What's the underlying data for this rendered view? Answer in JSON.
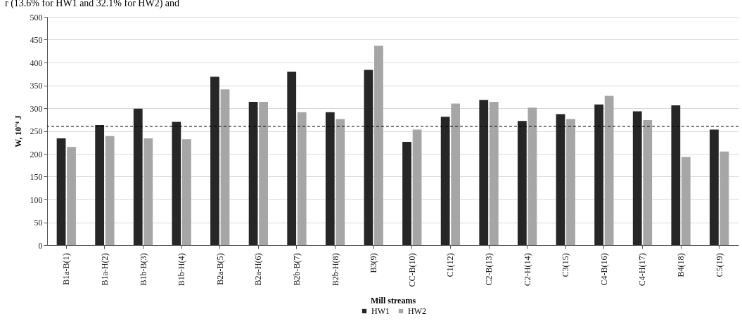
{
  "chart_data": {
    "type": "bar",
    "annotations": [
      "r (13.6% for HW1 and 32.1% for HW2) and"
    ],
    "xlabel": "Mill streams",
    "ylabel": "W, 10⁻⁴ J",
    "categories": [
      "B1a-B(1)",
      "B1a-H(2)",
      "B1b-B(3)",
      "B1b-H(4)",
      "B2a-B(5)",
      "B2a-H(6)",
      "B2b-B(7)",
      "B2b-H(8)",
      "B3(9)",
      "CC-B(10)",
      "C1(12)",
      "C2-B(13)",
      "C2-H(14)",
      "C3(15)",
      "C4-B(16)",
      "C4-H(17)",
      "B4(18)",
      "C5(19)"
    ],
    "series": [
      {
        "name": "HW1",
        "color": "#262626",
        "values": [
          234,
          263,
          299,
          270,
          369,
          314,
          380,
          291,
          384,
          226,
          281,
          318,
          272,
          287,
          308,
          293,
          306,
          253
        ]
      },
      {
        "name": "HW2",
        "color": "#a6a6a6",
        "values": [
          215,
          239,
          234,
          232,
          341,
          314,
          291,
          276,
          437,
          253,
          310,
          314,
          301,
          276,
          327,
          274,
          193,
          205
        ]
      }
    ],
    "ylim": [
      0,
      500
    ],
    "yticks": [
      0,
      50,
      100,
      150,
      200,
      250,
      300,
      350,
      400,
      450,
      500
    ],
    "grid": "y",
    "legend": "bottom",
    "ref_lines": [
      {
        "axis": "y",
        "value": 260,
        "color": "#000000",
        "line_style": "dashed"
      }
    ]
  }
}
